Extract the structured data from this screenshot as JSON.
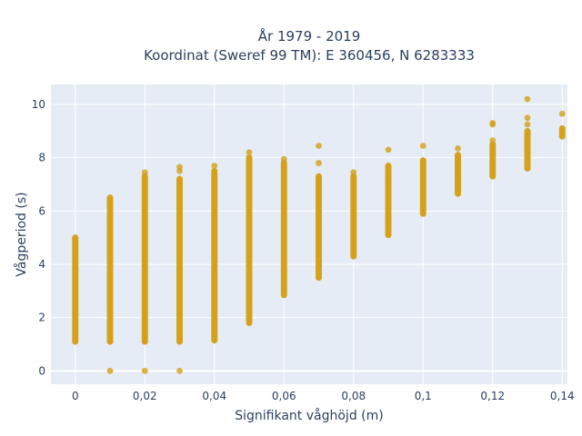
{
  "chart_data": {
    "type": "scatter",
    "title_line1": "År 1979 - 2019",
    "title_line2": "Koordinat (Sweref 99 TM): E 360456, N 6283333",
    "xlabel": "Signifikant våghöjd (m)",
    "ylabel": "Vågperiod (s)",
    "xlim": [
      -0.007,
      0.1415
    ],
    "ylim": [
      -0.5,
      10.75
    ],
    "xticks": [
      0,
      0.02,
      0.04,
      0.06,
      0.08,
      0.1,
      0.12,
      0.14
    ],
    "xtick_labels": [
      "0",
      "0,02",
      "0,04",
      "0,06",
      "0,08",
      "0,1",
      "0,12",
      "0,14"
    ],
    "yticks": [
      0,
      2,
      4,
      6,
      8,
      10
    ],
    "ytick_labels": [
      "0",
      "2",
      "4",
      "6",
      "8",
      "10"
    ],
    "marker_color": "#d4a017",
    "plot_bg": "#e5ecf6",
    "grid": true,
    "columns": [
      {
        "x": 0.0,
        "ymin": 1.1,
        "ymax": 5.0,
        "extra": []
      },
      {
        "x": 0.01,
        "ymin": 1.1,
        "ymax": 6.5,
        "extra": [
          0
        ]
      },
      {
        "x": 0.02,
        "ymin": 1.1,
        "ymax": 7.3,
        "extra": [
          0,
          7.45
        ]
      },
      {
        "x": 0.03,
        "ymin": 1.1,
        "ymax": 7.2,
        "extra": [
          0,
          7.5,
          7.65
        ]
      },
      {
        "x": 0.04,
        "ymin": 1.15,
        "ymax": 7.5,
        "extra": [
          7.7
        ]
      },
      {
        "x": 0.05,
        "ymin": 1.8,
        "ymax": 8.0,
        "extra": [
          8.2
        ]
      },
      {
        "x": 0.06,
        "ymin": 2.85,
        "ymax": 7.8,
        "extra": [
          7.95
        ]
      },
      {
        "x": 0.07,
        "ymin": 3.5,
        "ymax": 7.3,
        "extra": [
          7.8,
          8.45
        ]
      },
      {
        "x": 0.08,
        "ymin": 4.3,
        "ymax": 7.3,
        "extra": [
          7.45
        ]
      },
      {
        "x": 0.09,
        "ymin": 5.1,
        "ymax": 7.7,
        "extra": [
          8.3
        ]
      },
      {
        "x": 0.1,
        "ymin": 5.9,
        "ymax": 7.9,
        "extra": [
          8.45
        ]
      },
      {
        "x": 0.11,
        "ymin": 6.65,
        "ymax": 8.1,
        "extra": [
          8.35
        ]
      },
      {
        "x": 0.12,
        "ymin": 7.3,
        "ymax": 8.5,
        "extra": [
          8.65,
          9.25,
          9.3
        ]
      },
      {
        "x": 0.13,
        "ymin": 7.6,
        "ymax": 9.0,
        "extra": [
          9.25,
          9.5,
          10.2
        ]
      },
      {
        "x": 0.14,
        "ymin": 8.8,
        "ymax": 9.1,
        "extra": [
          9.65
        ]
      }
    ]
  }
}
